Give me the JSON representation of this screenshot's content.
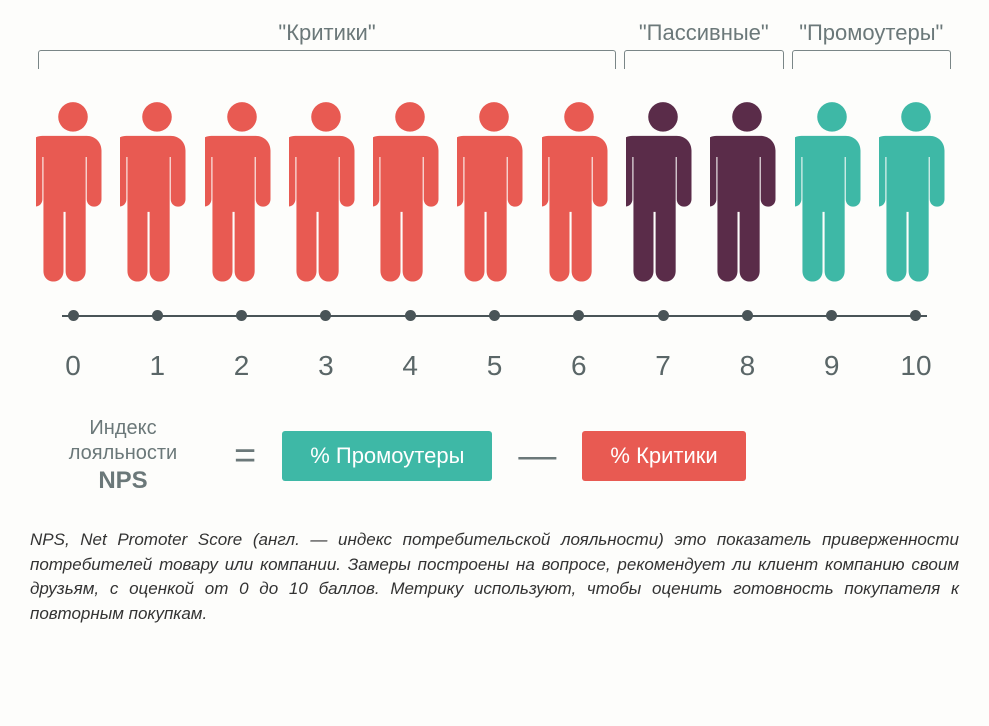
{
  "categories": [
    {
      "key": "detractors",
      "label": "\"Критики\"",
      "color": "#e85a52",
      "start": 0,
      "end": 6
    },
    {
      "key": "passives",
      "label": "\"Пассивные\"",
      "color": "#5a2c49",
      "start": 7,
      "end": 8
    },
    {
      "key": "promoters",
      "label": "\"Промоутеры\"",
      "color": "#3eb8a6",
      "start": 9,
      "end": 10
    }
  ],
  "scale": {
    "min": 0,
    "max": 10,
    "tick_color": "#495457",
    "label_color": "#5a6667",
    "label_fontsize": 28
  },
  "people": {
    "count": 11,
    "width": 74,
    "height": 190
  },
  "formula": {
    "lhs_line1": "Индекс",
    "lhs_line2": "лояльности",
    "lhs_line3": "NPS",
    "equals": "=",
    "term1_text": "% Промоутеры",
    "term1_bg": "#3eb8a6",
    "minus": "—",
    "term2_text": "% Критики",
    "term2_bg": "#e85a52",
    "text_color": "#6b7879"
  },
  "footer": "NPS, Net Promoter Score (англ. — индекс потребительской лояльности) это показатель приверженности потребителей товару или компании. Замеры построены на вопросе, рекомендует ли клиент компанию своим друзьям, с оценкой от 0 до 10 баллов. Метрику используют, чтобы оценить готовность покупателя к повторным покупкам.",
  "background": "#fdfdfb"
}
